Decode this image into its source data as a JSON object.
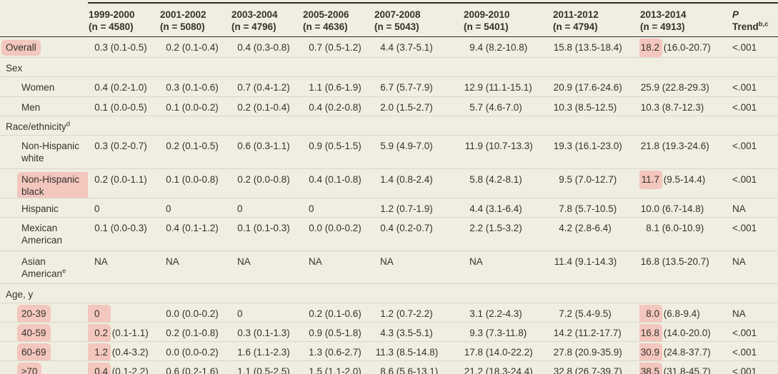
{
  "colors": {
    "background": "#efeee1",
    "text": "#34332c",
    "rule_dark": "#2e2d27",
    "rule_bottom": "#4a4840",
    "row_separator": "#d9d7c8",
    "highlight_pink": "#f3c6be"
  },
  "table": {
    "header": {
      "year_columns": [
        {
          "year": "1999-2000",
          "n": "(n = 4580)"
        },
        {
          "year": "2001-2002",
          "n": "(n = 5080)"
        },
        {
          "year": "2003-2004",
          "n": "(n = 4796)"
        },
        {
          "year": "2005-2006",
          "n": "(n = 4636)"
        },
        {
          "year": "2007-2008",
          "n": "(n = 5043)"
        },
        {
          "year": "2009-2010",
          "n": "(n = 5401)"
        },
        {
          "year": "2011-2012",
          "n": "(n = 4794)"
        },
        {
          "year": "2013-2014",
          "n": "(n = 4913)"
        }
      ],
      "p_column": {
        "line1": "P",
        "line2": "Trend",
        "sup": "b,c"
      }
    },
    "rows": [
      {
        "kind": "data",
        "label": "Overall",
        "label_hl": true,
        "indent": false,
        "p": "<.001",
        "cells": [
          {
            "num": "0.3",
            "ci": "(0.1-0.5)"
          },
          {
            "num": "0.2",
            "ci": "(0.1-0.4)"
          },
          {
            "num": "0.4",
            "ci": "(0.3-0.8)"
          },
          {
            "num": "0.7",
            "ci": "(0.5-1.2)"
          },
          {
            "num": "4.4",
            "ci": "(3.7-5.1)"
          },
          {
            "num": "9.4",
            "ci": "(8.2-10.8)"
          },
          {
            "num": "15.8",
            "ci": "(13.5-18.4)"
          },
          {
            "num": "18.2",
            "ci": "(16.0-20.7)",
            "hl": true
          }
        ]
      },
      {
        "kind": "section",
        "label": "Sex"
      },
      {
        "kind": "data",
        "label": "Women",
        "indent": true,
        "p": "<.001",
        "cells": [
          {
            "num": "0.4",
            "ci": "(0.2-1.0)"
          },
          {
            "num": "0.3",
            "ci": "(0.1-0.6)"
          },
          {
            "num": "0.7",
            "ci": "(0.4-1.2)"
          },
          {
            "num": "1.1",
            "ci": "(0.6-1.9)"
          },
          {
            "num": "6.7",
            "ci": "(5.7-7.9)"
          },
          {
            "num": "12.9",
            "ci": "(11.1-15.1)"
          },
          {
            "num": "20.9",
            "ci": "(17.6-24.6)"
          },
          {
            "num": "25.9",
            "ci": "(22.8-29.3)"
          }
        ]
      },
      {
        "kind": "data",
        "label": "Men",
        "indent": true,
        "p": "<.001",
        "cells": [
          {
            "num": "0.1",
            "ci": "(0.0-0.5)"
          },
          {
            "num": "0.1",
            "ci": "(0.0-0.2)"
          },
          {
            "num": "0.2",
            "ci": "(0.1-0.4)"
          },
          {
            "num": "0.4",
            "ci": "(0.2-0.8)"
          },
          {
            "num": "2.0",
            "ci": "(1.5-2.7)"
          },
          {
            "num": "5.7",
            "ci": "(4.6-7.0)"
          },
          {
            "num": "10.3",
            "ci": "(8.5-12.5)"
          },
          {
            "num": "10.3",
            "ci": "(8.7-12.3)"
          }
        ]
      },
      {
        "kind": "section",
        "label": "Race/ethnicity",
        "label_sup": "d"
      },
      {
        "kind": "data",
        "label": "Non-Hispanic white",
        "indent": true,
        "p": "<.001",
        "cells": [
          {
            "num": "0.3",
            "ci": "(0.2-0.7)"
          },
          {
            "num": "0.2",
            "ci": "(0.1-0.5)"
          },
          {
            "num": "0.6",
            "ci": "(0.3-1.1)"
          },
          {
            "num": "0.9",
            "ci": "(0.5-1.5)"
          },
          {
            "num": "5.9",
            "ci": "(4.9-7.0)"
          },
          {
            "num": "11.9",
            "ci": "(10.7-13.3)"
          },
          {
            "num": "19.3",
            "ci": "(16.1-23.0)"
          },
          {
            "num": "21.8",
            "ci": "(19.3-24.6)"
          }
        ]
      },
      {
        "kind": "data",
        "label": "Non-Hispanic black",
        "label_hl": true,
        "indent": true,
        "p": "<.001",
        "cells": [
          {
            "num": "0.2",
            "ci": "(0.0-1.1)"
          },
          {
            "num": "0.1",
            "ci": "(0.0-0.8)"
          },
          {
            "num": "0.2",
            "ci": "(0.0-0.8)"
          },
          {
            "num": "0.4",
            "ci": "(0.1-0.8)"
          },
          {
            "num": "1.4",
            "ci": "(0.8-2.4)"
          },
          {
            "num": "5.8",
            "ci": "(4.2-8.1)"
          },
          {
            "num": "9.5",
            "ci": "(7.0-12.7)"
          },
          {
            "num": "11.7",
            "ci": "(9.5-14.4)",
            "hl": true
          }
        ]
      },
      {
        "kind": "data",
        "label": "Hispanic",
        "indent": true,
        "p": "NA",
        "cells": [
          {
            "plain": "0"
          },
          {
            "plain": "0"
          },
          {
            "plain": "0"
          },
          {
            "plain": "0"
          },
          {
            "num": "1.2",
            "ci": "(0.7-1.9)"
          },
          {
            "num": "4.4",
            "ci": "(3.1-6.4)"
          },
          {
            "num": "7.8",
            "ci": "(5.7-10.5)"
          },
          {
            "num": "10.0",
            "ci": "(6.7-14.8)"
          }
        ]
      },
      {
        "kind": "data",
        "label": "Mexican American",
        "indent": true,
        "p": "<.001",
        "cells": [
          {
            "num": "0.1",
            "ci": "(0.0-0.3)"
          },
          {
            "num": "0.4",
            "ci": "(0.1-1.2)"
          },
          {
            "num": "0.1",
            "ci": "(0.1-0.3)"
          },
          {
            "num": "0.0",
            "ci": "(0.0-0.2)"
          },
          {
            "num": "0.4",
            "ci": "(0.2-0.7)"
          },
          {
            "num": "2.2",
            "ci": "(1.5-3.2)"
          },
          {
            "num": "4.2",
            "ci": "(2.8-6.4)"
          },
          {
            "num": "8.1",
            "ci": "(6.0-10.9)"
          }
        ]
      },
      {
        "kind": "data",
        "label": "Asian American",
        "label_sup": "e",
        "indent": true,
        "p": "NA",
        "cells": [
          {
            "plain": "NA"
          },
          {
            "plain": "NA"
          },
          {
            "plain": "NA"
          },
          {
            "plain": "NA"
          },
          {
            "plain": "NA"
          },
          {
            "plain": "NA"
          },
          {
            "num": "11.4",
            "ci": "(9.1-14.3)"
          },
          {
            "num": "16.8",
            "ci": "(13.5-20.7)"
          }
        ]
      },
      {
        "kind": "section",
        "label": "Age, y"
      },
      {
        "kind": "data",
        "label": "20-39",
        "label_hl": true,
        "band": true,
        "indent": true,
        "p": "NA",
        "cells": [
          {
            "plain": "0",
            "hl": true
          },
          {
            "num": "0.0",
            "ci": "(0.0-0.2)"
          },
          {
            "plain": "0"
          },
          {
            "num": "0.2",
            "ci": "(0.1-0.6)"
          },
          {
            "num": "1.2",
            "ci": "(0.7-2.2)"
          },
          {
            "num": "3.1",
            "ci": "(2.2-4.3)"
          },
          {
            "num": "7.2",
            "ci": "(5.4-9.5)"
          },
          {
            "num": "8.0",
            "ci": "(6.8-9.4)",
            "hl": true
          }
        ]
      },
      {
        "kind": "data",
        "label": "40-59",
        "label_hl": true,
        "band": true,
        "indent": true,
        "p": "<.001",
        "cells": [
          {
            "num": "0.2",
            "ci": "(0.1-1.1)",
            "hl": true
          },
          {
            "num": "0.2",
            "ci": "(0.1-0.8)"
          },
          {
            "num": "0.3",
            "ci": "(0.1-1.3)"
          },
          {
            "num": "0.9",
            "ci": "(0.5-1.8)"
          },
          {
            "num": "4.3",
            "ci": "(3.5-5.1)"
          },
          {
            "num": "9.3",
            "ci": "(7.3-11.8)"
          },
          {
            "num": "14.2",
            "ci": "(11.2-17.7)"
          },
          {
            "num": "16.8",
            "ci": "(14.0-20.0)",
            "hl": true
          }
        ]
      },
      {
        "kind": "data",
        "label": "60-69",
        "label_hl": true,
        "band": true,
        "indent": true,
        "p": "<.001",
        "cells": [
          {
            "num": "1.2",
            "ci": "(0.4-3.2)",
            "hl": true
          },
          {
            "num": "0.0",
            "ci": "(0.0-0.2)"
          },
          {
            "num": "1.6",
            "ci": "(1.1-2.3)"
          },
          {
            "num": "1.3",
            "ci": "(0.6-2.7)"
          },
          {
            "num": "11.3",
            "ci": "(8.5-14.8)"
          },
          {
            "num": "17.8",
            "ci": "(14.0-22.2)"
          },
          {
            "num": "27.8",
            "ci": "(20.9-35.9)"
          },
          {
            "num": "30.9",
            "ci": "(24.8-37.7)",
            "hl": true
          }
        ]
      },
      {
        "kind": "data",
        "label": "≥70",
        "label_hl": true,
        "band": true,
        "indent": true,
        "p": "<.001",
        "cells": [
          {
            "num": "0.4",
            "ci": "(0.1-2.2)",
            "hl": true
          },
          {
            "num": "0.6",
            "ci": "(0.2-1.6)"
          },
          {
            "num": "1.1",
            "ci": "(0.5-2.5)"
          },
          {
            "num": "1.5",
            "ci": "(1.1-2.0)"
          },
          {
            "num": "8.6",
            "ci": "(5.6-13.1)"
          },
          {
            "num": "21.2",
            "ci": "(18.3-24.4)"
          },
          {
            "num": "32.8",
            "ci": "(26.7-39.7)"
          },
          {
            "num": "38.5",
            "ci": "(31.8-45.7)",
            "hl": true
          }
        ]
      }
    ]
  }
}
